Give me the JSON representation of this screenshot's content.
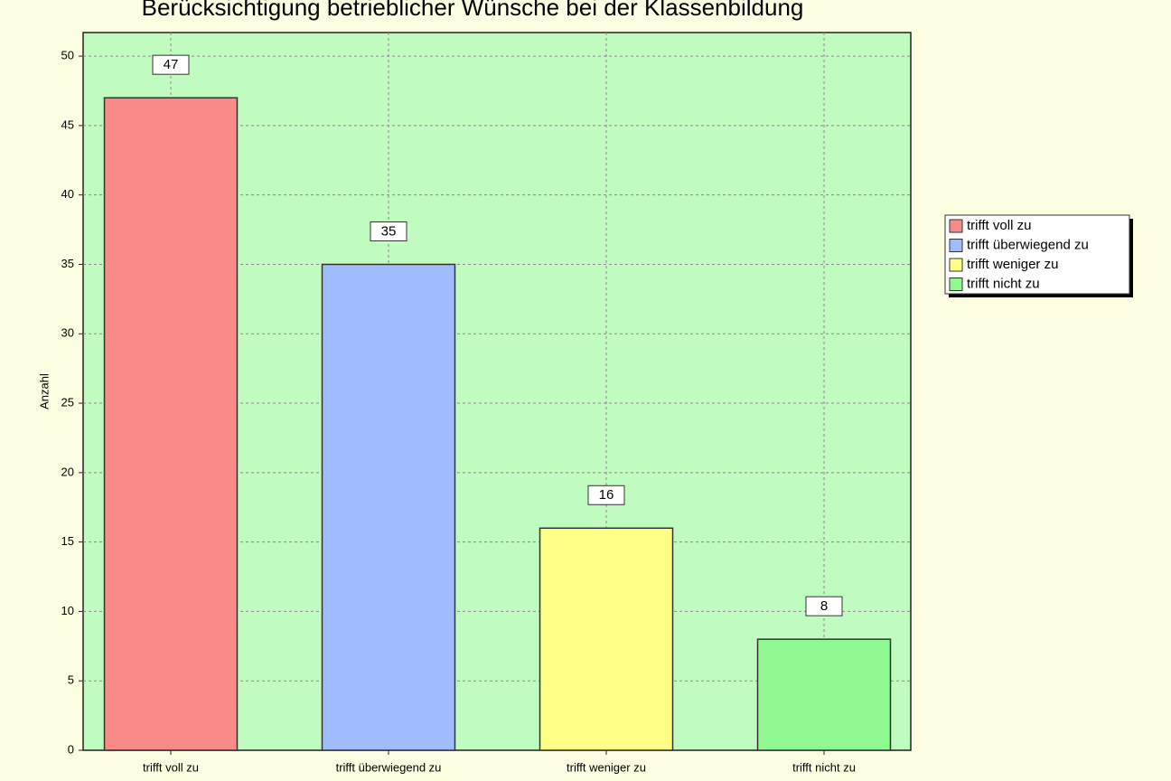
{
  "chart_data": {
    "type": "bar",
    "title": "Berücksichtigung betrieblicher Wünsche bei der Klassenbildung",
    "y_label": "Anzahl",
    "categories": [
      "trifft voll zu",
      "trifft überwiegend zu",
      "trifft weniger zu",
      "trifft nicht zu"
    ],
    "values": [
      47,
      35,
      16,
      8
    ],
    "colors": [
      "#f88a88",
      "#a0bcff",
      "#ffff88",
      "#90f890"
    ],
    "ylim": [
      0,
      51.7
    ],
    "yticks": [
      0,
      5,
      10,
      15,
      20,
      25,
      30,
      35,
      40,
      45,
      50
    ],
    "grid": true,
    "legend": "right"
  }
}
